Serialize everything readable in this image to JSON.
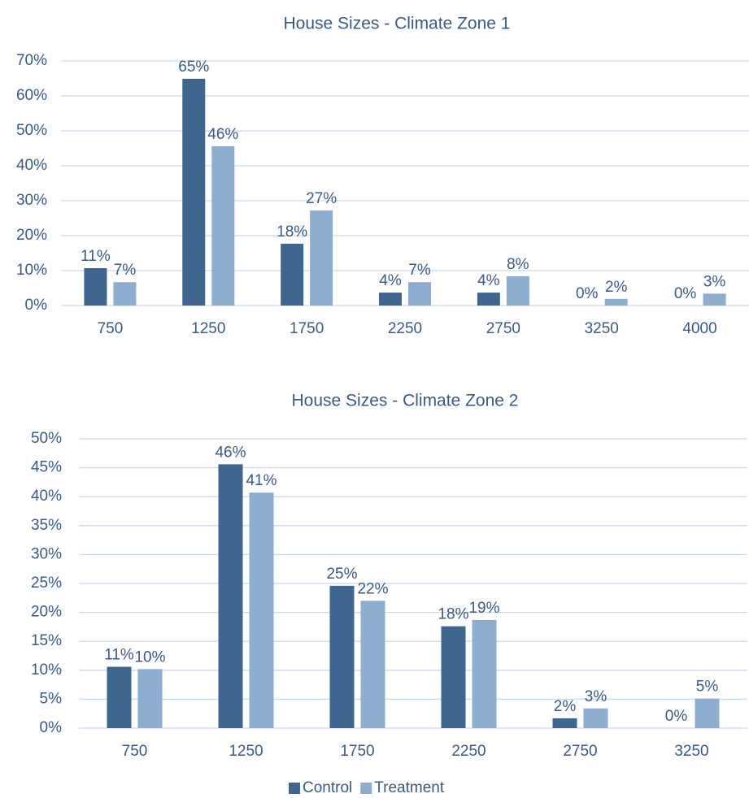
{
  "chart_data": [
    {
      "type": "bar",
      "title": "House Sizes - Climate Zone 1",
      "categories": [
        "750",
        "1250",
        "1750",
        "2250",
        "2750",
        "3250",
        "4000"
      ],
      "series": [
        {
          "color": "#3f668f",
          "values": [
            10.7,
            64.9,
            17.7,
            3.7,
            3.7,
            0,
            0
          ],
          "value_labels": [
            "11%",
            "65%",
            "18%",
            "4%",
            "4%",
            "0%",
            "0%"
          ]
        },
        {
          "color": "#8eaed0",
          "values": [
            6.7,
            45.6,
            27.2,
            6.7,
            8.4,
            1.9,
            3.4
          ],
          "value_labels": [
            "7%",
            "46%",
            "27%",
            "7%",
            "8%",
            "2%",
            "3%"
          ]
        }
      ],
      "ylim": [
        0,
        70
      ],
      "yticks": [
        {
          "value": 0,
          "label": "0%"
        },
        {
          "value": 10,
          "label": "10%"
        },
        {
          "value": 20,
          "label": "20%"
        },
        {
          "value": 30,
          "label": "30%"
        },
        {
          "value": 40,
          "label": "40%"
        },
        {
          "value": 50,
          "label": "50%"
        },
        {
          "value": 60,
          "label": "60%"
        },
        {
          "value": 70,
          "label": "70%"
        }
      ],
      "grid": true
    },
    {
      "type": "bar",
      "title": "House Sizes - Climate Zone 2",
      "categories": [
        "750",
        "1250",
        "1750",
        "2250",
        "2750",
        "3250"
      ],
      "series": [
        {
          "name": "Control",
          "color": "#3f668f",
          "values": [
            10.6,
            45.6,
            24.6,
            17.6,
            1.7,
            0
          ],
          "value_labels": [
            "11%",
            "46%",
            "25%",
            "18%",
            "2%",
            "0%"
          ]
        },
        {
          "name": "Treatment",
          "color": "#8eaed0",
          "values": [
            10.2,
            40.7,
            22.0,
            18.7,
            3.4,
            5.1
          ],
          "value_labels": [
            "10%",
            "41%",
            "22%",
            "19%",
            "3%",
            "5%"
          ]
        }
      ],
      "ylim": [
        0,
        50
      ],
      "yticks": [
        {
          "value": 0,
          "label": "0%"
        },
        {
          "value": 5,
          "label": "5%"
        },
        {
          "value": 10,
          "label": "10%"
        },
        {
          "value": 15,
          "label": "15%"
        },
        {
          "value": 20,
          "label": "20%"
        },
        {
          "value": 25,
          "label": "25%"
        },
        {
          "value": 30,
          "label": "30%"
        },
        {
          "value": 35,
          "label": "35%"
        },
        {
          "value": 40,
          "label": "40%"
        },
        {
          "value": 45,
          "label": "45%"
        },
        {
          "value": 50,
          "label": "50%"
        }
      ],
      "grid": true,
      "legend": "bottom"
    }
  ]
}
